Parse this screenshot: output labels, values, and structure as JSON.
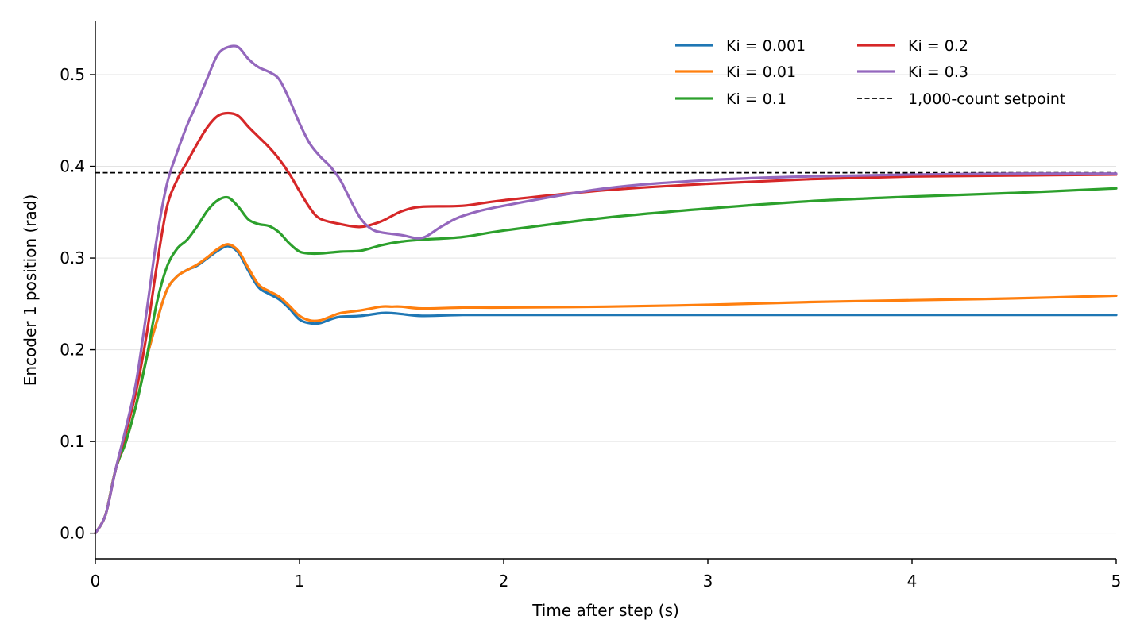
{
  "chart_data": {
    "type": "line",
    "title": "",
    "xlabel": "Time after step (s)",
    "ylabel": "Encoder 1 position (rad)",
    "xlim": [
      0,
      5
    ],
    "ylim": [
      -0.028,
      0.558
    ],
    "xticks": [
      0,
      1,
      2,
      3,
      4,
      5
    ],
    "xtick_labels": [
      "0",
      "1",
      "2",
      "3",
      "4",
      "5"
    ],
    "yticks": [
      0.0,
      0.1,
      0.2,
      0.3,
      0.4,
      0.5
    ],
    "ytick_labels": [
      "0.0",
      "0.1",
      "0.2",
      "0.3",
      "0.4",
      "0.5"
    ],
    "grid": "horizontal",
    "legend_position": "top-right",
    "legend_columns": 2,
    "series": [
      {
        "name": "Ki = 0.001",
        "color": "#1f77b4",
        "points": [
          [
            0,
            0
          ],
          [
            0.05,
            0.02
          ],
          [
            0.1,
            0.07
          ],
          [
            0.15,
            0.1
          ],
          [
            0.2,
            0.14
          ],
          [
            0.25,
            0.19
          ],
          [
            0.3,
            0.23
          ],
          [
            0.35,
            0.265
          ],
          [
            0.4,
            0.28
          ],
          [
            0.45,
            0.287
          ],
          [
            0.5,
            0.292
          ],
          [
            0.55,
            0.3
          ],
          [
            0.6,
            0.308
          ],
          [
            0.65,
            0.313
          ],
          [
            0.7,
            0.306
          ],
          [
            0.75,
            0.286
          ],
          [
            0.8,
            0.268
          ],
          [
            0.85,
            0.261
          ],
          [
            0.9,
            0.255
          ],
          [
            0.95,
            0.245
          ],
          [
            1.0,
            0.233
          ],
          [
            1.05,
            0.229
          ],
          [
            1.1,
            0.229
          ],
          [
            1.15,
            0.233
          ],
          [
            1.2,
            0.236
          ],
          [
            1.3,
            0.237
          ],
          [
            1.4,
            0.24
          ],
          [
            1.45,
            0.24
          ],
          [
            1.5,
            0.239
          ],
          [
            1.6,
            0.237
          ],
          [
            1.8,
            0.238
          ],
          [
            2.0,
            0.238
          ],
          [
            2.5,
            0.238
          ],
          [
            3.0,
            0.238
          ],
          [
            3.5,
            0.238
          ],
          [
            4.0,
            0.238
          ],
          [
            4.5,
            0.238
          ],
          [
            5.0,
            0.238
          ]
        ]
      },
      {
        "name": "Ki = 0.01",
        "color": "#ff7f0e",
        "points": [
          [
            0,
            0
          ],
          [
            0.05,
            0.02
          ],
          [
            0.1,
            0.07
          ],
          [
            0.15,
            0.1
          ],
          [
            0.2,
            0.14
          ],
          [
            0.25,
            0.19
          ],
          [
            0.3,
            0.23
          ],
          [
            0.35,
            0.265
          ],
          [
            0.4,
            0.28
          ],
          [
            0.45,
            0.287
          ],
          [
            0.5,
            0.293
          ],
          [
            0.55,
            0.301
          ],
          [
            0.6,
            0.31
          ],
          [
            0.65,
            0.315
          ],
          [
            0.7,
            0.308
          ],
          [
            0.75,
            0.289
          ],
          [
            0.8,
            0.271
          ],
          [
            0.85,
            0.264
          ],
          [
            0.9,
            0.258
          ],
          [
            0.95,
            0.248
          ],
          [
            1.0,
            0.237
          ],
          [
            1.05,
            0.232
          ],
          [
            1.1,
            0.232
          ],
          [
            1.15,
            0.236
          ],
          [
            1.2,
            0.24
          ],
          [
            1.3,
            0.243
          ],
          [
            1.4,
            0.247
          ],
          [
            1.45,
            0.247
          ],
          [
            1.5,
            0.247
          ],
          [
            1.6,
            0.245
          ],
          [
            1.8,
            0.246
          ],
          [
            2.0,
            0.246
          ],
          [
            2.5,
            0.247
          ],
          [
            3.0,
            0.249
          ],
          [
            3.5,
            0.252
          ],
          [
            4.0,
            0.254
          ],
          [
            4.5,
            0.256
          ],
          [
            5.0,
            0.259
          ]
        ]
      },
      {
        "name": "Ki = 0.1",
        "color": "#2ca02c",
        "points": [
          [
            0,
            0
          ],
          [
            0.05,
            0.02
          ],
          [
            0.1,
            0.07
          ],
          [
            0.15,
            0.1
          ],
          [
            0.2,
            0.14
          ],
          [
            0.25,
            0.19
          ],
          [
            0.3,
            0.25
          ],
          [
            0.35,
            0.29
          ],
          [
            0.4,
            0.31
          ],
          [
            0.45,
            0.32
          ],
          [
            0.5,
            0.335
          ],
          [
            0.55,
            0.352
          ],
          [
            0.6,
            0.363
          ],
          [
            0.65,
            0.366
          ],
          [
            0.7,
            0.356
          ],
          [
            0.75,
            0.342
          ],
          [
            0.8,
            0.337
          ],
          [
            0.85,
            0.335
          ],
          [
            0.9,
            0.328
          ],
          [
            0.95,
            0.316
          ],
          [
            1.0,
            0.307
          ],
          [
            1.05,
            0.305
          ],
          [
            1.1,
            0.305
          ],
          [
            1.2,
            0.307
          ],
          [
            1.3,
            0.308
          ],
          [
            1.4,
            0.314
          ],
          [
            1.5,
            0.318
          ],
          [
            1.6,
            0.32
          ],
          [
            1.8,
            0.323
          ],
          [
            2.0,
            0.33
          ],
          [
            2.5,
            0.344
          ],
          [
            3.0,
            0.354
          ],
          [
            3.5,
            0.362
          ],
          [
            4.0,
            0.367
          ],
          [
            4.5,
            0.371
          ],
          [
            5.0,
            0.376
          ]
        ]
      },
      {
        "name": "Ki = 0.2",
        "color": "#d62728",
        "points": [
          [
            0,
            0
          ],
          [
            0.05,
            0.02
          ],
          [
            0.1,
            0.07
          ],
          [
            0.15,
            0.11
          ],
          [
            0.2,
            0.155
          ],
          [
            0.25,
            0.215
          ],
          [
            0.3,
            0.29
          ],
          [
            0.35,
            0.355
          ],
          [
            0.4,
            0.385
          ],
          [
            0.45,
            0.405
          ],
          [
            0.5,
            0.425
          ],
          [
            0.55,
            0.443
          ],
          [
            0.6,
            0.455
          ],
          [
            0.65,
            0.458
          ],
          [
            0.7,
            0.455
          ],
          [
            0.75,
            0.443
          ],
          [
            0.8,
            0.432
          ],
          [
            0.85,
            0.421
          ],
          [
            0.9,
            0.408
          ],
          [
            0.95,
            0.392
          ],
          [
            1.0,
            0.373
          ],
          [
            1.05,
            0.355
          ],
          [
            1.1,
            0.343
          ],
          [
            1.2,
            0.337
          ],
          [
            1.3,
            0.334
          ],
          [
            1.4,
            0.34
          ],
          [
            1.5,
            0.351
          ],
          [
            1.6,
            0.356
          ],
          [
            1.8,
            0.357
          ],
          [
            2.0,
            0.363
          ],
          [
            2.5,
            0.374
          ],
          [
            3.0,
            0.381
          ],
          [
            3.5,
            0.386
          ],
          [
            4.0,
            0.389
          ],
          [
            4.5,
            0.39
          ],
          [
            5.0,
            0.391
          ]
        ]
      },
      {
        "name": "Ki = 0.3",
        "color": "#9467bd",
        "points": [
          [
            0,
            0
          ],
          [
            0.05,
            0.02
          ],
          [
            0.1,
            0.07
          ],
          [
            0.15,
            0.115
          ],
          [
            0.2,
            0.165
          ],
          [
            0.25,
            0.24
          ],
          [
            0.3,
            0.32
          ],
          [
            0.35,
            0.38
          ],
          [
            0.4,
            0.415
          ],
          [
            0.45,
            0.445
          ],
          [
            0.5,
            0.47
          ],
          [
            0.55,
            0.497
          ],
          [
            0.6,
            0.522
          ],
          [
            0.65,
            0.53
          ],
          [
            0.7,
            0.53
          ],
          [
            0.75,
            0.517
          ],
          [
            0.8,
            0.508
          ],
          [
            0.85,
            0.503
          ],
          [
            0.9,
            0.495
          ],
          [
            0.95,
            0.473
          ],
          [
            1.0,
            0.447
          ],
          [
            1.05,
            0.425
          ],
          [
            1.1,
            0.411
          ],
          [
            1.15,
            0.4
          ],
          [
            1.2,
            0.385
          ],
          [
            1.25,
            0.363
          ],
          [
            1.3,
            0.343
          ],
          [
            1.35,
            0.332
          ],
          [
            1.4,
            0.328
          ],
          [
            1.5,
            0.325
          ],
          [
            1.6,
            0.322
          ],
          [
            1.7,
            0.335
          ],
          [
            1.8,
            0.346
          ],
          [
            2.0,
            0.357
          ],
          [
            2.5,
            0.376
          ],
          [
            3.0,
            0.385
          ],
          [
            3.5,
            0.389
          ],
          [
            4.0,
            0.391
          ],
          [
            4.5,
            0.392
          ],
          [
            5.0,
            0.392
          ]
        ]
      }
    ],
    "reference_line": {
      "name": "1,000-count setpoint",
      "y": 0.393,
      "color": "#000000",
      "style": "dashed"
    }
  }
}
